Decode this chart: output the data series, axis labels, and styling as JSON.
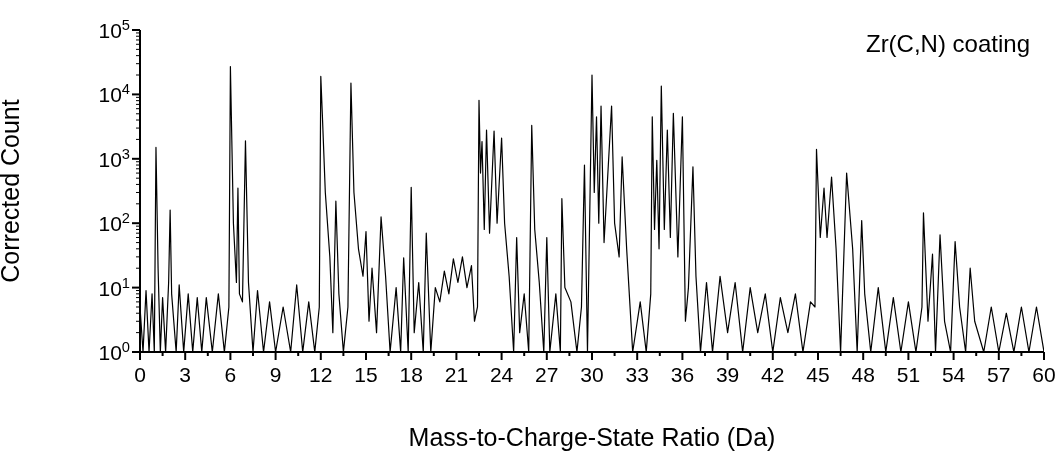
{
  "chart_data": {
    "type": "line",
    "xlabel": "Mass-to-Charge-State Ratio (Da)",
    "ylabel": "Corrected Count",
    "annotations": [
      "Zr(C,N) coating"
    ],
    "log": "y",
    "marker": "none",
    "line_style": "solid",
    "xlim": [
      0,
      60
    ],
    "xticks": [
      0,
      {
        "value": 1.5,
        "label": null
      },
      3,
      {
        "value": 4.5,
        "label": null
      },
      6,
      {
        "value": 7.5,
        "label": null
      },
      9,
      {
        "value": 10.5,
        "label": null
      },
      12,
      {
        "value": 13.5,
        "label": null
      },
      15,
      {
        "value": 16.5,
        "label": null
      },
      18,
      {
        "value": 19.5,
        "label": null
      },
      21,
      {
        "value": 22.5,
        "label": null
      },
      24,
      {
        "value": 25.5,
        "label": null
      },
      27,
      {
        "value": 28.5,
        "label": null
      },
      30,
      {
        "value": 31.5,
        "label": null
      },
      33,
      {
        "value": 34.5,
        "label": null
      },
      36,
      {
        "value": 37.5,
        "label": null
      },
      39,
      {
        "value": 40.5,
        "label": null
      },
      42,
      {
        "value": 43.5,
        "label": null
      },
      45,
      {
        "value": 46.5,
        "label": null
      },
      48,
      {
        "value": 49.5,
        "label": null
      },
      51,
      {
        "value": 52.5,
        "label": null
      },
      54,
      {
        "value": 55.5,
        "label": null
      },
      57,
      {
        "value": 58.5,
        "label": null
      },
      60
    ],
    "ylim": [
      1,
      100000
    ],
    "yticks": [
      {
        "value": 1,
        "label": "10$^{0}$"
      },
      {
        "value": 2,
        "label": null
      },
      {
        "value": 3,
        "label": null
      },
      {
        "value": 4,
        "label": null
      },
      {
        "value": 5,
        "label": null
      },
      {
        "value": 6,
        "label": null
      },
      {
        "value": 7,
        "label": null
      },
      {
        "value": 8,
        "label": null
      },
      {
        "value": 9,
        "label": null
      },
      {
        "value": 10,
        "label": "10$^{1}$"
      },
      {
        "value": 20,
        "label": null
      },
      {
        "value": 30,
        "label": null
      },
      {
        "value": 40,
        "label": null
      },
      {
        "value": 50,
        "label": null
      },
      {
        "value": 60,
        "label": null
      },
      {
        "value": 70,
        "label": null
      },
      {
        "value": 80,
        "label": null
      },
      {
        "value": 90,
        "label": null
      },
      {
        "value": 100,
        "label": "10$^{2}$"
      },
      {
        "value": 200,
        "label": null
      },
      {
        "value": 300,
        "label": null
      },
      {
        "value": 400,
        "label": null
      },
      {
        "value": 500,
        "label": null
      },
      {
        "value": 600,
        "label": null
      },
      {
        "value": 700,
        "label": null
      },
      {
        "value": 800,
        "label": null
      },
      {
        "value": 900,
        "label": null
      },
      {
        "value": 1000,
        "label": "10$^{3}$"
      },
      {
        "value": 2000,
        "label": null
      },
      {
        "value": 3000,
        "label": null
      },
      {
        "value": 4000,
        "label": null
      },
      {
        "value": 5000,
        "label": null
      },
      {
        "value": 6000,
        "label": null
      },
      {
        "value": 7000,
        "label": null
      },
      {
        "value": 8000,
        "label": null
      },
      {
        "value": 9000,
        "label": null
      },
      {
        "value": 10000,
        "label": "10$^{4}$"
      },
      {
        "value": 20000,
        "label": null
      },
      {
        "value": 30000,
        "label": null
      },
      {
        "value": 40000,
        "label": null
      },
      {
        "value": 50000,
        "label": null
      },
      {
        "value": 60000,
        "label": null
      },
      {
        "value": 70000,
        "label": null
      },
      {
        "value": 80000,
        "label": null
      },
      {
        "value": 90000,
        "label": null
      },
      {
        "value": 100000,
        "label": "10$^{5}$"
      }
    ],
    "series": [
      {
        "color": "#000000",
        "x": [
          0,
          0.2,
          0.4,
          0.6,
          0.8,
          0.95,
          1.06,
          1.2,
          1.35,
          1.5,
          1.7,
          1.9,
          2.0,
          2.1,
          2.4,
          2.6,
          2.9,
          3.2,
          3.5,
          3.8,
          4.1,
          4.4,
          4.8,
          5.2,
          5.6,
          5.9,
          6.0,
          6.2,
          6.4,
          6.5,
          6.6,
          6.8,
          7.0,
          7.2,
          7.5,
          7.8,
          8.2,
          8.6,
          9.0,
          9.5,
          10.0,
          10.4,
          10.8,
          11.2,
          11.6,
          11.9,
          12.0,
          12.1,
          12.3,
          12.6,
          12.8,
          13.0,
          13.2,
          13.5,
          13.8,
          14.0,
          14.2,
          14.5,
          14.8,
          15.0,
          15.2,
          15.4,
          15.7,
          16.0,
          16.3,
          16.6,
          17.0,
          17.3,
          17.5,
          17.8,
          18.0,
          18.2,
          18.5,
          18.8,
          19.0,
          19.3,
          19.6,
          19.9,
          20.2,
          20.5,
          20.8,
          21.1,
          21.4,
          21.7,
          22.0,
          22.2,
          22.4,
          22.5,
          22.6,
          22.7,
          22.85,
          23.0,
          23.2,
          23.5,
          23.7,
          24.0,
          24.2,
          24.5,
          24.8,
          25.0,
          25.2,
          25.5,
          25.8,
          26.0,
          26.2,
          26.5,
          26.8,
          27.0,
          27.2,
          27.6,
          27.9,
          28.0,
          28.2,
          28.6,
          29.0,
          29.3,
          29.5,
          29.7,
          30.0,
          30.15,
          30.3,
          30.45,
          30.6,
          30.8,
          31.3,
          31.5,
          31.8,
          32.0,
          32.3,
          32.7,
          33.2,
          33.6,
          33.9,
          34.0,
          34.15,
          34.3,
          34.45,
          34.6,
          34.8,
          35.0,
          35.2,
          35.4,
          35.7,
          36.0,
          36.2,
          36.4,
          36.7,
          36.9,
          37.2,
          37.6,
          38.0,
          38.5,
          39.0,
          39.5,
          40.0,
          40.5,
          41.0,
          41.5,
          42.0,
          42.5,
          43.0,
          43.5,
          44.0,
          44.5,
          44.8,
          44.9,
          45.15,
          45.4,
          45.6,
          45.9,
          46.2,
          46.5,
          46.9,
          47.3,
          47.6,
          47.9,
          48.1,
          48.5,
          49.0,
          49.5,
          50.0,
          50.5,
          51.0,
          51.5,
          51.9,
          52.0,
          52.3,
          52.6,
          52.8,
          53.1,
          53.4,
          53.8,
          54.1,
          54.4,
          54.8,
          55.1,
          55.4,
          56.0,
          56.5,
          57.0,
          57.5,
          58.0,
          58.5,
          59.0,
          59.5,
          60.0
        ],
        "values": [
          5,
          1,
          9,
          1,
          8,
          1,
          1500,
          20,
          1,
          7,
          1,
          12,
          160,
          8,
          1,
          11,
          1,
          8,
          1,
          7,
          1,
          7,
          1,
          8,
          1,
          5,
          27000,
          100,
          12,
          350,
          8,
          6,
          1900,
          12,
          1,
          9,
          1,
          6,
          1,
          5,
          1,
          11,
          1,
          6,
          1,
          5,
          19000,
          5000,
          300,
          30,
          2,
          220,
          8,
          1,
          5,
          15000,
          300,
          40,
          15,
          74,
          3,
          20,
          2,
          125,
          15,
          1,
          10,
          1,
          29,
          1,
          360,
          2,
          12,
          1,
          70,
          1,
          10,
          6,
          18,
          8,
          28,
          12,
          30,
          10,
          22,
          3,
          5,
          8100,
          600,
          1850,
          80,
          2800,
          70,
          2700,
          100,
          2100,
          100,
          15,
          1,
          60,
          2,
          8,
          1,
          3300,
          80,
          12,
          1,
          60,
          1,
          8,
          1,
          240,
          10,
          6,
          1,
          5,
          800,
          1,
          20000,
          300,
          4500,
          100,
          6600,
          50,
          6600,
          100,
          30,
          1070,
          40,
          1,
          6,
          1,
          8,
          4500,
          80,
          950,
          40,
          13500,
          80,
          2800,
          60,
          5100,
          30,
          4500,
          3,
          10,
          750,
          15,
          1,
          12,
          1,
          15,
          2,
          12,
          1,
          10,
          2,
          8,
          1,
          7,
          2,
          8,
          1,
          6,
          5,
          1400,
          60,
          350,
          60,
          520,
          40,
          1,
          600,
          40,
          1,
          110,
          8,
          1,
          10,
          1,
          7,
          1,
          6,
          1,
          5,
          145,
          3,
          33,
          1,
          66,
          3,
          1,
          52,
          5,
          1,
          20,
          3,
          1,
          5,
          1,
          4,
          1,
          5,
          1,
          5,
          1
        ]
      }
    ]
  }
}
